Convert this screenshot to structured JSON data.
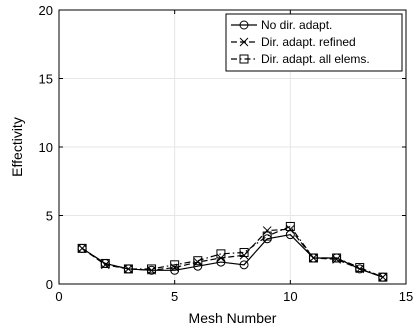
{
  "chart_data": {
    "type": "line",
    "xlabel": "Mesh Number",
    "ylabel": "Effectivity",
    "xlim": [
      0,
      15
    ],
    "ylim": [
      0,
      20
    ],
    "xticks": [
      "0",
      "5",
      "10",
      "15"
    ],
    "yticks": [
      "0",
      "5",
      "10",
      "15",
      "20"
    ],
    "grid": true,
    "legend_position": "top-right",
    "x": [
      1,
      2,
      3,
      4,
      5,
      6,
      7,
      8,
      9,
      10,
      11,
      12,
      13,
      14
    ],
    "series": [
      {
        "name": "No dir. adapt.",
        "marker": "circle",
        "line_style": "solid",
        "values": [
          2.6,
          1.5,
          1.1,
          1.0,
          1.0,
          1.3,
          1.6,
          1.4,
          3.3,
          3.6,
          1.9,
          1.9,
          1.1,
          0.5
        ]
      },
      {
        "name": "Dir. adapt. refined",
        "marker": "x",
        "line_style": "dashed",
        "values": [
          2.6,
          1.4,
          1.1,
          1.0,
          1.2,
          1.6,
          1.9,
          2.1,
          3.9,
          4.0,
          1.9,
          1.8,
          1.1,
          0.5
        ]
      },
      {
        "name": "Dir. adapt. all elems.",
        "marker": "square",
        "line_style": "dashdot",
        "values": [
          2.6,
          1.5,
          1.1,
          1.1,
          1.4,
          1.7,
          2.2,
          2.3,
          3.5,
          4.2,
          1.9,
          1.9,
          1.2,
          0.5
        ]
      }
    ]
  }
}
